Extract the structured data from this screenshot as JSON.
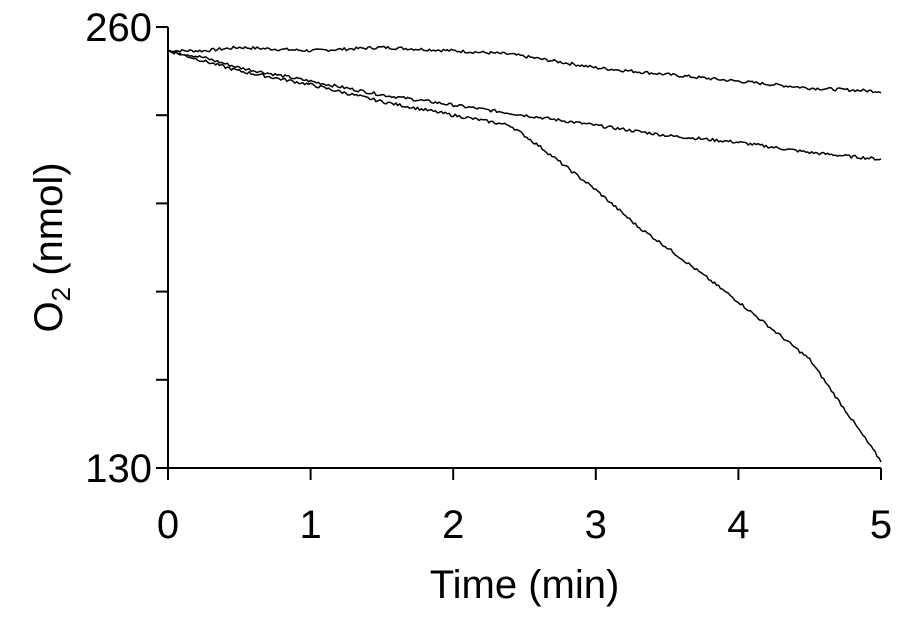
{
  "chart_data": {
    "type": "line",
    "title": "",
    "xlabel": "Time (min)",
    "ylabel": {
      "base": "O",
      "subscript": "2",
      "rest": " (nmol)"
    },
    "xlim": [
      0,
      5
    ],
    "ylim": [
      130,
      260
    ],
    "x_ticks": [
      0,
      1,
      2,
      3,
      4,
      5
    ],
    "y_ticks": [
      130,
      156,
      182,
      208,
      234,
      260
    ],
    "x_tick_labels": [
      "0",
      "1",
      "2",
      "3",
      "4",
      "5"
    ],
    "y_tick_labels": [
      "130",
      "",
      "",
      "",
      "",
      "260"
    ],
    "grid": false,
    "legend": "none",
    "series": [
      {
        "x": [
          0,
          0.25,
          0.5,
          1.0,
          1.5,
          2.0,
          2.4,
          3.0,
          3.5,
          4.0,
          4.5,
          5.0
        ],
        "values": [
          253,
          253,
          254,
          253,
          254,
          253,
          252,
          248,
          246,
          244,
          242,
          241
        ]
      },
      {
        "x": [
          0,
          0.25,
          0.5,
          1.0,
          1.5,
          2.0,
          2.5,
          3.0,
          3.5,
          4.0,
          4.5,
          5.0
        ],
        "values": [
          253,
          251,
          248,
          244,
          240,
          237,
          234,
          231,
          228,
          226,
          223,
          221
        ]
      },
      {
        "x": [
          0,
          0.25,
          0.5,
          1.0,
          1.5,
          2.0,
          2.4,
          2.6,
          3.0,
          3.3,
          3.5,
          4.0,
          4.5,
          5.0
        ],
        "values": [
          253,
          250,
          247,
          243,
          238,
          234,
          231,
          225,
          212,
          201,
          195,
          179,
          162,
          132
        ]
      }
    ]
  }
}
